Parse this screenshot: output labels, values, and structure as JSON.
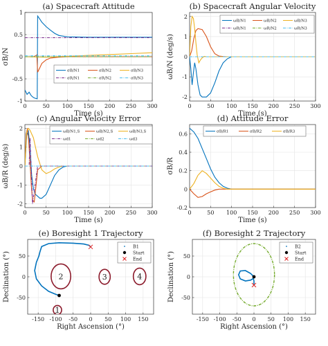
{
  "chart_data": [
    {
      "type": "line",
      "title": "(a) Spacecraft Attitude",
      "xlabel": "Time (s)",
      "ylabel": "σB/N",
      "xlim": [
        0,
        300
      ],
      "ylim": [
        -1,
        1
      ],
      "xticks": [
        "0",
        "50",
        "100",
        "150",
        "200",
        "250",
        "300"
      ],
      "yticks": [
        "-1",
        "-0.5",
        "0",
        "0.5",
        "1"
      ],
      "grid": true,
      "legend_position": "bottom",
      "series": [
        {
          "name": "σB/N1",
          "color": "#0072BD",
          "dash": "solid",
          "x": [
            0,
            5,
            10,
            15,
            20,
            25,
            29,
            30,
            35,
            40,
            50,
            60,
            70,
            80,
            100,
            150,
            300
          ],
          "y": [
            -0.75,
            -0.85,
            -0.8,
            -0.88,
            -0.92,
            -0.94,
            -0.95,
            0.92,
            0.85,
            0.78,
            0.68,
            0.6,
            0.53,
            0.48,
            0.45,
            0.44,
            0.44
          ]
        },
        {
          "name": "σB/N2",
          "color": "#D95319",
          "dash": "solid",
          "x": [
            0,
            20,
            25,
            28,
            30,
            35,
            40,
            50,
            60,
            80,
            100,
            150,
            300
          ],
          "y": [
            0,
            0,
            0.02,
            0.04,
            -0.35,
            -0.25,
            -0.15,
            -0.07,
            -0.03,
            -0.01,
            0,
            0,
            0
          ]
        },
        {
          "name": "σB/N3",
          "color": "#EDB120",
          "dash": "solid",
          "x": [
            0,
            50,
            100,
            150,
            200,
            250,
            300
          ],
          "y": [
            0,
            -0.01,
            0.01,
            0.03,
            0.05,
            0.07,
            0.09
          ]
        },
        {
          "name": "σR/N1",
          "color": "#7E2F8E",
          "dash": "dashdot",
          "x": [
            0,
            300
          ],
          "y": [
            0.43,
            0.43
          ]
        },
        {
          "name": "σR/N2",
          "color": "#77AC30",
          "dash": "dashdot",
          "x": [
            0,
            300
          ],
          "y": [
            0.0,
            0.0
          ]
        },
        {
          "name": "σR/N3",
          "color": "#4DBEEE",
          "dash": "dashdot",
          "x": [
            0,
            300
          ],
          "y": [
            0.02,
            0.02
          ]
        }
      ]
    },
    {
      "type": "line",
      "title": "(b) Spacecraft Angular Velocity",
      "xlabel": "Time (s)",
      "ylabel": "ωB/N (deg/s)",
      "xlim": [
        0,
        300
      ],
      "ylim": [
        -2.2,
        2.2
      ],
      "xticks": [
        "0",
        "50",
        "100",
        "150",
        "200",
        "250",
        "300"
      ],
      "yticks": [
        "-2",
        "-1",
        "0",
        "1",
        "2"
      ],
      "grid": true,
      "legend_position": "top-right",
      "series": [
        {
          "name": "ωB/N1",
          "color": "#0072BD",
          "dash": "solid",
          "x": [
            0,
            3,
            6,
            9,
            12,
            15,
            20,
            25,
            30,
            40,
            50,
            60,
            70,
            80,
            90,
            100,
            300
          ],
          "y": [
            0,
            -0.6,
            -1.4,
            -0.8,
            -0.3,
            -0.6,
            -1.4,
            -1.9,
            -2.0,
            -2.0,
            -1.8,
            -1.3,
            -0.7,
            -0.3,
            -0.1,
            0,
            0
          ]
        },
        {
          "name": "ωB/N2",
          "color": "#D95319",
          "dash": "solid",
          "x": [
            0,
            5,
            10,
            15,
            20,
            30,
            40,
            50,
            60,
            70,
            80,
            90,
            300
          ],
          "y": [
            0,
            0.3,
            0.9,
            1.3,
            1.4,
            1.35,
            1.0,
            0.5,
            0.15,
            0.03,
            0.01,
            0,
            0
          ]
        },
        {
          "name": "ωB/N3",
          "color": "#EDB120",
          "dash": "solid",
          "x": [
            0,
            3,
            6,
            9,
            12,
            15,
            18,
            22,
            26,
            30,
            35,
            40,
            60,
            300
          ],
          "y": [
            0,
            1.5,
            2.0,
            1.9,
            1.4,
            0.7,
            0.1,
            -0.3,
            -0.15,
            -0.05,
            0.02,
            0,
            0,
            0
          ]
        },
        {
          "name": "ωR/N1",
          "color": "#7E2F8E",
          "dash": "dashdot",
          "x": [
            0,
            300
          ],
          "y": [
            0,
            0
          ]
        },
        {
          "name": "ωR/N2",
          "color": "#77AC30",
          "dash": "dashdot",
          "x": [
            0,
            300
          ],
          "y": [
            0,
            0
          ]
        },
        {
          "name": "ωR/N3",
          "color": "#4DBEEE",
          "dash": "dashdot",
          "x": [
            0,
            300
          ],
          "y": [
            0,
            0
          ]
        }
      ]
    },
    {
      "type": "line",
      "title": "(c) Angular Velocity Error",
      "xlabel": "Time (s)",
      "ylabel": "ωB/R (deg/s)",
      "xlim": [
        0,
        300
      ],
      "ylim": [
        -2.2,
        2.2
      ],
      "xticks": [
        "0",
        "50",
        "100",
        "150",
        "200",
        "250",
        "300"
      ],
      "yticks": [
        "-2",
        "-1",
        "0",
        "1",
        "2"
      ],
      "grid": true,
      "legend_position": "top",
      "series": [
        {
          "name": "ωB/N1,S",
          "color": "#0072BD",
          "dash": "solid",
          "x": [
            0,
            4,
            8,
            12,
            16,
            20,
            25,
            30,
            35,
            40,
            50,
            60,
            70,
            80,
            90,
            100,
            300
          ],
          "y": [
            0,
            1.6,
            1.9,
            1.0,
            -0.5,
            -1.2,
            -1.5,
            -1.6,
            -1.7,
            -1.7,
            -1.5,
            -1.0,
            -0.5,
            -0.2,
            -0.05,
            0,
            0
          ]
        },
        {
          "name": "ωB/N2,S",
          "color": "#D95319",
          "dash": "solid",
          "x": [
            0,
            3,
            6,
            9,
            12,
            15,
            18,
            22,
            26,
            30,
            40,
            300
          ],
          "y": [
            0,
            1.7,
            2.0,
            1.3,
            0.2,
            -1.0,
            -1.8,
            -1.9,
            -1.1,
            -0.2,
            0,
            0
          ]
        },
        {
          "name": "ωB/N3,S",
          "color": "#EDB120",
          "dash": "solid",
          "x": [
            0,
            4,
            8,
            12,
            16,
            20,
            25,
            30,
            40,
            50,
            60,
            70,
            80,
            90,
            100,
            300
          ],
          "y": [
            0,
            1.8,
            2.0,
            1.9,
            1.7,
            1.5,
            1.0,
            0.5,
            -0.2,
            -0.4,
            -0.3,
            -0.15,
            -0.05,
            0,
            0,
            0
          ]
        },
        {
          "name": "ωd1",
          "color": "#7E2F8E",
          "dash": "dashdot",
          "x": [
            0,
            10,
            12,
            18,
            30,
            300
          ],
          "y": [
            0,
            0,
            1.5,
            -2.0,
            0,
            0
          ]
        },
        {
          "name": "ωd2",
          "color": "#77AC30",
          "dash": "dashdot",
          "x": [
            0,
            300
          ],
          "y": [
            0,
            0
          ]
        },
        {
          "name": "ωd3",
          "color": "#4DBEEE",
          "dash": "dashdot",
          "x": [
            0,
            300
          ],
          "y": [
            0,
            0
          ]
        }
      ]
    },
    {
      "type": "line",
      "title": "(d) Attitude Error",
      "xlabel": "Time (s)",
      "ylabel": "σB/R",
      "xlim": [
        0,
        300
      ],
      "ylim": [
        -0.2,
        0.7
      ],
      "xticks": [
        "0",
        "50",
        "100",
        "150",
        "200",
        "250",
        "300"
      ],
      "yticks": [
        "-0.2",
        "0",
        "0.2",
        "0.4",
        "0.6"
      ],
      "grid": true,
      "legend_position": "top",
      "series": [
        {
          "name": "σB/R1",
          "color": "#0072BD",
          "dash": "solid",
          "x": [
            0,
            10,
            20,
            30,
            40,
            50,
            60,
            70,
            80,
            90,
            100,
            120,
            300
          ],
          "y": [
            0.66,
            0.62,
            0.55,
            0.44,
            0.33,
            0.22,
            0.13,
            0.07,
            0.03,
            0.01,
            0,
            0,
            0
          ]
        },
        {
          "name": "σB/R2",
          "color": "#D95319",
          "dash": "solid",
          "x": [
            0,
            10,
            20,
            30,
            40,
            50,
            60,
            70,
            80,
            100,
            300
          ],
          "y": [
            0,
            -0.05,
            -0.09,
            -0.08,
            -0.05,
            -0.03,
            -0.01,
            0,
            0,
            0,
            0
          ]
        },
        {
          "name": "σB/R3",
          "color": "#EDB120",
          "dash": "solid",
          "x": [
            0,
            10,
            20,
            30,
            40,
            50,
            60,
            70,
            80,
            90,
            100,
            300
          ],
          "y": [
            0,
            0.06,
            0.15,
            0.2,
            0.17,
            0.12,
            0.07,
            0.03,
            0.01,
            0,
            0,
            0
          ]
        }
      ]
    },
    {
      "type": "scatter",
      "title": "(e) Boresight 1 Trajectory",
      "xlabel": "Right Ascension (°)",
      "ylabel": "Declination (°)",
      "xlim": [
        -180,
        180
      ],
      "ylim": [
        -90,
        90
      ],
      "xticks": [
        "-150",
        "-100",
        "-50",
        "0",
        "50",
        "100",
        "150"
      ],
      "yticks": [
        "-50",
        "0",
        "50"
      ],
      "grid": true,
      "legend_position": "top-right",
      "legend": [
        "B1",
        "Start",
        "End"
      ],
      "trajectory": {
        "name": "B1",
        "color": "#0072BD",
        "ra": [
          -90,
          -100,
          -120,
          -140,
          -155,
          -160,
          -155,
          -148,
          -145,
          -140,
          -120,
          -90,
          -50,
          -20,
          -5,
          0
        ],
        "dec": [
          -45,
          -42,
          -35,
          -22,
          -5,
          15,
          35,
          50,
          60,
          73,
          80,
          82,
          81,
          79,
          76,
          72
        ]
      },
      "start": {
        "ra": -90,
        "dec": -45
      },
      "end": {
        "ra": 0,
        "dec": 72
      },
      "regions": [
        {
          "label": "1",
          "ra": -95,
          "dec": -80,
          "rx": 12,
          "ry": 11
        },
        {
          "label": "2",
          "ra": -85,
          "dec": 1,
          "rx": 28,
          "ry": 30
        },
        {
          "label": "3",
          "ra": 40,
          "dec": 0,
          "rx": 16,
          "ry": 18
        },
        {
          "label": "4",
          "ra": 140,
          "dec": 1,
          "rx": 18,
          "ry": 20
        }
      ]
    },
    {
      "type": "scatter",
      "title": "(f) Boresight 2 Trajectory",
      "xlabel": "Right Ascension (°)",
      "ylabel": "Declination (°)",
      "xlim": [
        -180,
        180
      ],
      "ylim": [
        -90,
        90
      ],
      "xticks": [
        "-150",
        "-100",
        "-50",
        "0",
        "50",
        "100",
        "150"
      ],
      "yticks": [
        "-50",
        "0",
        "50"
      ],
      "grid": true,
      "legend_position": "top-right",
      "legend": [
        "B2",
        "Start",
        "End"
      ],
      "trajectory": {
        "name": "B2",
        "color": "#0072BD",
        "ra": [
          0,
          -10,
          -25,
          -40,
          -45,
          -40,
          -25,
          -10,
          -2,
          0,
          0
        ],
        "dec": [
          0,
          8,
          15,
          14,
          5,
          -5,
          -10,
          -8,
          -4,
          -10,
          -20
        ]
      },
      "start": {
        "ra": 0,
        "dec": 0
      },
      "end": {
        "ra": 0,
        "dec": -20
      },
      "boundary": {
        "ra": 0,
        "dec": 5,
        "rx": 60,
        "ry": 75
      }
    }
  ]
}
